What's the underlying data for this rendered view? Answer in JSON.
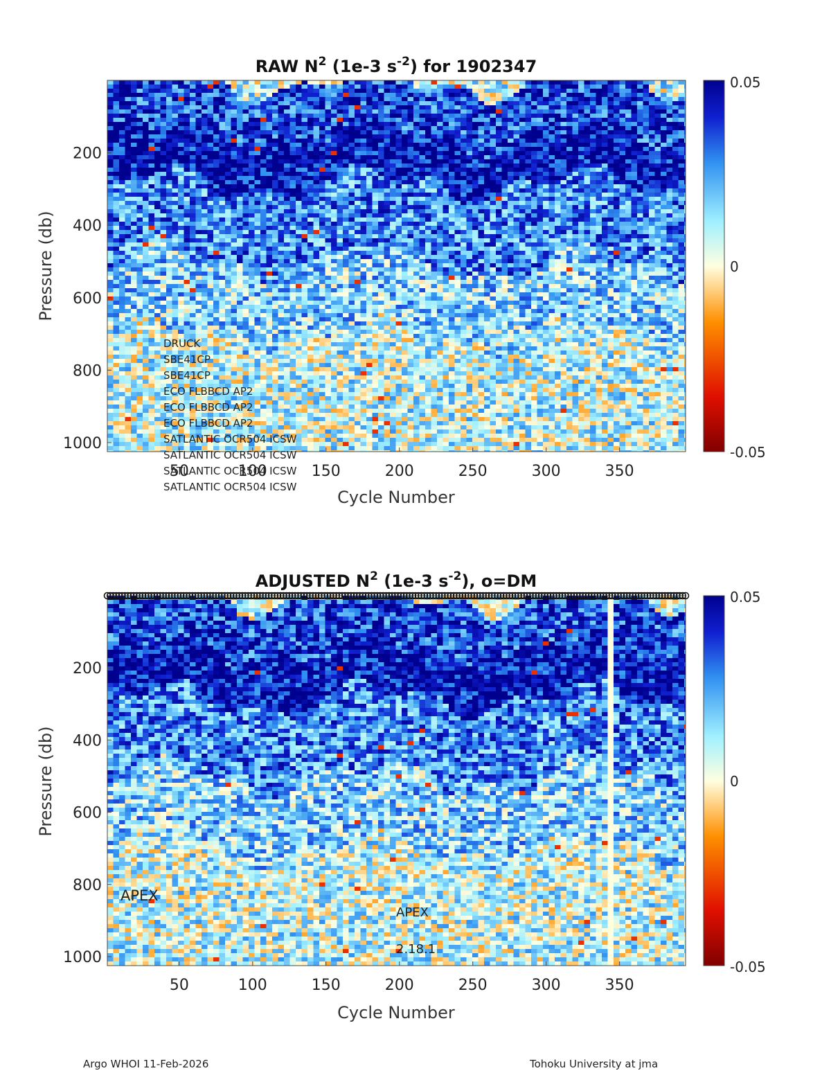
{
  "chart_data": [
    {
      "type": "heatmap",
      "title": {
        "prefix": "RAW N",
        "sup1": "2",
        "mid": " (1e-3 s",
        "sup2": "-2",
        "suffix": ") for 1902347"
      },
      "xlabel": "Cycle Number",
      "ylabel": "Pressure (db)",
      "xlim": [
        1,
        395
      ],
      "ylim": [
        0,
        1025
      ],
      "y_reversed": true,
      "xticks": [
        "50",
        "100",
        "150",
        "200",
        "250",
        "300",
        "350"
      ],
      "yticks": [
        "200",
        "400",
        "600",
        "800",
        "1000"
      ],
      "colorbar": {
        "min_label": "-0.05",
        "mid_label": "0",
        "max_label": "0.05",
        "range": [
          -0.05,
          0.05
        ],
        "colormap": "dark red - orange - white - cyan - dark blue"
      },
      "layers": [
        {
          "p": [
            0,
            150
          ],
          "typical": 0.036
        },
        {
          "p": [
            150,
            280
          ],
          "typical": 0.045
        },
        {
          "p": [
            280,
            500
          ],
          "typical": 0.028
        },
        {
          "p": [
            500,
            700
          ],
          "typical": 0.016
        },
        {
          "p": [
            700,
            1025
          ],
          "typical": 0.008
        }
      ],
      "annotations": [
        "DRUCK",
        "SBE41CP",
        "SBE41CP",
        "ECO FLBBCD AP2",
        "ECO FLBBCD AP2",
        "ECO FLBBCD AP2",
        "SATLANTIC OCR504 ICSW",
        "SATLANTIC OCR504 ICSW",
        "SATLANTIC OCR504 ICSW",
        "SATLANTIC OCR504 ICSW"
      ]
    },
    {
      "type": "heatmap",
      "title": {
        "prefix": "ADJUSTED N",
        "sup1": "2",
        "mid": " (1e-3 s",
        "sup2": "-2",
        "suffix": "), o=DM"
      },
      "xlabel": "Cycle Number",
      "ylabel": "Pressure (db)",
      "xlim": [
        1,
        395
      ],
      "ylim": [
        0,
        1025
      ],
      "y_reversed": true,
      "xticks": [
        "50",
        "100",
        "150",
        "200",
        "250",
        "300",
        "350"
      ],
      "yticks": [
        "200",
        "400",
        "600",
        "800",
        "1000"
      ],
      "colorbar": {
        "min_label": "-0.05",
        "mid_label": "0",
        "max_label": "0.05",
        "range": [
          -0.05,
          0.05
        ],
        "colormap": "dark red - orange - white - cyan - dark blue"
      },
      "qc_marker_row": "o",
      "annotations": {
        "platform_left": "APEX",
        "platform_center": "APEX",
        "firmware": "2.18.1"
      }
    }
  ],
  "footer": {
    "left": "Argo WHOI 11-Feb-2026",
    "right": "Tohoku University at jma"
  }
}
